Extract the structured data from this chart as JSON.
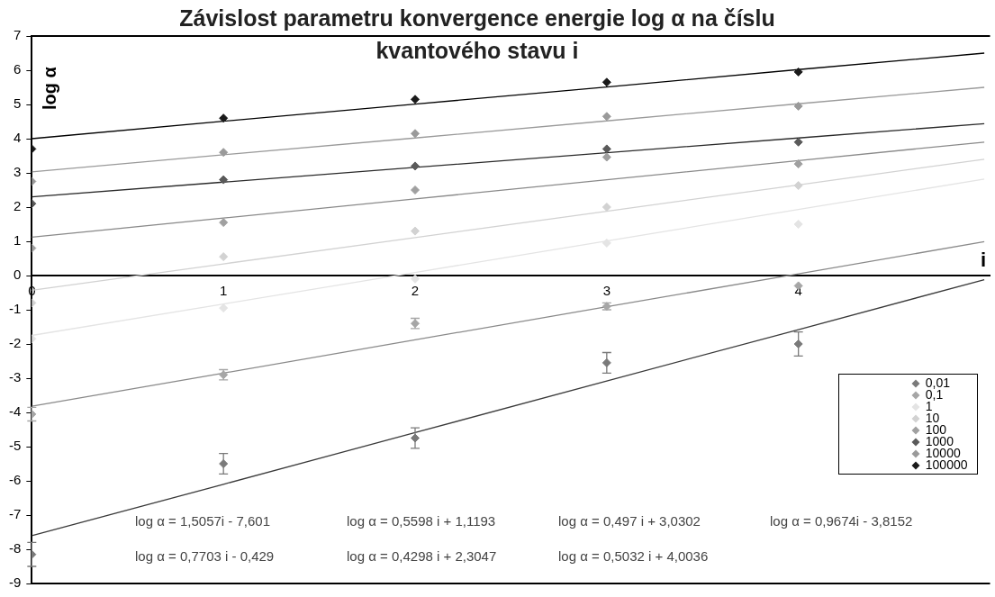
{
  "chart_data": {
    "type": "scatter",
    "title": "Závislost parametru konvergence energie log α na číslu kvantového stavu i",
    "xlabel": "i",
    "ylabel": "log α",
    "x": [
      0,
      1,
      2,
      3,
      4
    ],
    "xlim": [
      0,
      5
    ],
    "xticks": [
      0,
      1,
      2,
      3,
      4
    ],
    "ylim": [
      -9,
      7
    ],
    "yticks": [
      -9,
      -8,
      -7,
      -6,
      -5,
      -4,
      -3,
      -2,
      -1,
      0,
      1,
      2,
      3,
      4,
      5,
      6,
      7
    ],
    "grid": false,
    "legend": "bottom right",
    "series": [
      {
        "name": "0,01",
        "marker": "diamond",
        "color": "#7a7a7a",
        "values": [
          -8.15,
          -5.5,
          -4.75,
          -2.55,
          -2.0
        ],
        "errors": [
          0.35,
          0.3,
          0.3,
          0.3,
          0.35
        ]
      },
      {
        "name": "0,1",
        "marker": "diamond",
        "color": "#a6a6a6",
        "values": [
          -4.05,
          -2.9,
          -1.4,
          -0.9,
          -0.3
        ],
        "errors": [
          0.2,
          0.15,
          0.15,
          0.1,
          null
        ]
      },
      {
        "name": "1",
        "marker": "diamond",
        "color": "#e4e4e4",
        "values": [
          -1.85,
          -0.95,
          -0.1,
          0.95,
          1.5
        ]
      },
      {
        "name": "10",
        "marker": "diamond",
        "color": "#d2d2d2",
        "values": [
          -0.8,
          0.55,
          1.3,
          2.0,
          2.63
        ]
      },
      {
        "name": "100",
        "marker": "diamond",
        "color": "#a0a0a0",
        "values": [
          0.8,
          1.55,
          2.5,
          3.46,
          3.26
        ]
      },
      {
        "name": "1000",
        "marker": "diamond",
        "color": "#5a5a5a",
        "values": [
          2.1,
          2.8,
          3.2,
          3.7,
          3.9
        ]
      },
      {
        "name": "10000",
        "marker": "diamond",
        "color": "#9a9a9a",
        "values": [
          2.75,
          3.6,
          4.15,
          4.65,
          4.95
        ]
      },
      {
        "name": "100000",
        "marker": "diamond",
        "color": "#1a1a1a",
        "values": [
          3.7,
          4.6,
          5.15,
          5.65,
          5.95
        ]
      },
      {
        "type": "line",
        "marker": "none",
        "color": "#3a3a3a",
        "x": [
          0,
          1,
          2,
          3,
          4,
          4.97
        ],
        "values": [
          -7.6,
          -6.1,
          -4.59,
          -3.08,
          -1.58,
          -0.12
        ]
      },
      {
        "type": "line",
        "marker": "none",
        "color": "#8a8a8a",
        "x": [
          0,
          1,
          2,
          3,
          4,
          4.97
        ],
        "values": [
          -3.82,
          -2.85,
          -1.88,
          -0.91,
          0.05,
          0.99
        ]
      },
      {
        "type": "line",
        "marker": "none",
        "color": "#e4e4e4",
        "x": [
          0,
          1,
          2,
          3,
          4,
          4.97
        ],
        "values": [
          -1.75,
          -0.83,
          0.09,
          1.01,
          1.93,
          2.82
        ]
      },
      {
        "type": "line",
        "marker": "none",
        "color": "#d2d2d2",
        "x": [
          0,
          1,
          2,
          3,
          4,
          4.97
        ],
        "values": [
          -0.43,
          0.34,
          1.11,
          1.88,
          2.65,
          3.4
        ]
      },
      {
        "type": "line",
        "marker": "none",
        "color": "#8a8a8a",
        "x": [
          0,
          1,
          2,
          3,
          4,
          4.97
        ],
        "values": [
          1.12,
          1.68,
          2.24,
          2.8,
          3.36,
          3.9
        ]
      },
      {
        "type": "line",
        "marker": "none",
        "color": "#2a2a2a",
        "x": [
          0,
          1,
          2,
          3,
          4,
          4.97
        ],
        "values": [
          2.3,
          2.73,
          3.16,
          3.59,
          4.02,
          4.44
        ]
      },
      {
        "type": "line",
        "marker": "none",
        "color": "#9a9a9a",
        "x": [
          0,
          1,
          2,
          3,
          4,
          4.97
        ],
        "values": [
          3.03,
          3.53,
          4.02,
          4.52,
          5.02,
          5.5
        ]
      },
      {
        "type": "line",
        "marker": "none",
        "color": "#000000",
        "x": [
          0,
          1,
          2,
          3,
          4,
          4.97
        ],
        "values": [
          4.0,
          4.51,
          5.01,
          5.51,
          6.02,
          6.5
        ]
      }
    ],
    "annotations": [
      "log α = 1,5057i - 7,601",
      "log α = 0,5598 i + 1,1193",
      "log α = 0,497 i + 3,0302",
      "log α = 0,9674i - 3,8152",
      "log α = 0,7703 i - 0,429",
      "log α = 0,4298 i + 2,3047",
      "log α = 0,5032 i + 4,0036"
    ]
  }
}
